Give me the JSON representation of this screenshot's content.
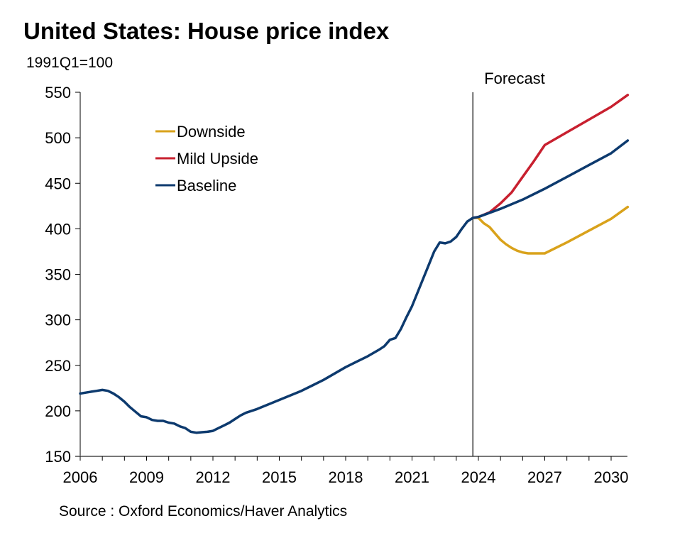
{
  "chart_data": {
    "type": "line",
    "title": "United States: House price index",
    "subtitle": "1991Q1=100",
    "source": "Source : Oxford Economics/Haver Analytics",
    "xlabel": "",
    "ylabel": "1991Q1=100",
    "xlim": [
      2006,
      2030.75
    ],
    "ylim": [
      150,
      550
    ],
    "yticks": [
      150,
      200,
      250,
      300,
      350,
      400,
      450,
      500,
      550
    ],
    "xticks": [
      2006,
      2009,
      2012,
      2015,
      2018,
      2021,
      2024,
      2027,
      2030
    ],
    "grid": false,
    "legend_position": "top-left",
    "annotation": {
      "label": "Forecast",
      "x": 2023.75
    },
    "colors": {
      "Downside": "#d9a21b",
      "Mild Upside": "#c8202f",
      "Baseline": "#0d3a6e"
    },
    "series": [
      {
        "name": "Baseline",
        "x": [
          2006.0,
          2006.25,
          2006.5,
          2006.75,
          2007.0,
          2007.25,
          2007.5,
          2007.75,
          2008.0,
          2008.25,
          2008.5,
          2008.75,
          2009.0,
          2009.25,
          2009.5,
          2009.75,
          2010.0,
          2010.25,
          2010.5,
          2010.75,
          2011.0,
          2011.25,
          2011.5,
          2011.75,
          2012.0,
          2012.25,
          2012.5,
          2012.75,
          2013.0,
          2013.25,
          2013.5,
          2013.75,
          2014.0,
          2014.5,
          2015.0,
          2015.5,
          2016.0,
          2016.5,
          2017.0,
          2017.5,
          2018.0,
          2018.5,
          2019.0,
          2019.5,
          2019.75,
          2020.0,
          2020.25,
          2020.5,
          2020.75,
          2021.0,
          2021.25,
          2021.5,
          2021.75,
          2022.0,
          2022.25,
          2022.5,
          2022.75,
          2023.0,
          2023.25,
          2023.5,
          2023.75,
          2024.0,
          2025.0,
          2026.0,
          2027.0,
          2028.0,
          2029.0,
          2030.0,
          2030.75
        ],
        "values": [
          219,
          220,
          221,
          222,
          223,
          222,
          219,
          215,
          210,
          204,
          199,
          194,
          193,
          190,
          189,
          189,
          187,
          186,
          183,
          181,
          177,
          176,
          176.5,
          177,
          178,
          181,
          184,
          187,
          191,
          195,
          198,
          200,
          202,
          207,
          212,
          217,
          222,
          228,
          234,
          241,
          248,
          254,
          260,
          267,
          271,
          278,
          280,
          290,
          303,
          315,
          330,
          345,
          360,
          375,
          385,
          384,
          386,
          391,
          400,
          408,
          412,
          413,
          422,
          432,
          444,
          457,
          470,
          483,
          497
        ]
      },
      {
        "name": "Mild Upside",
        "x": [
          2023.75,
          2024.0,
          2024.5,
          2025.0,
          2025.5,
          2026.0,
          2026.5,
          2027.0,
          2028.0,
          2029.0,
          2030.0,
          2030.75
        ],
        "values": [
          412,
          413,
          418,
          428,
          440,
          457,
          474,
          492,
          506,
          520,
          534,
          547
        ]
      },
      {
        "name": "Downside",
        "x": [
          2023.75,
          2024.0,
          2024.25,
          2024.5,
          2024.75,
          2025.0,
          2025.25,
          2025.5,
          2025.75,
          2026.0,
          2026.25,
          2026.5,
          2026.75,
          2027.0,
          2028.0,
          2029.0,
          2030.0,
          2030.75
        ],
        "values": [
          412,
          412,
          406,
          402,
          395,
          388,
          383,
          379,
          376,
          374,
          373,
          373,
          373,
          373,
          385,
          398,
          411,
          424
        ]
      }
    ]
  }
}
